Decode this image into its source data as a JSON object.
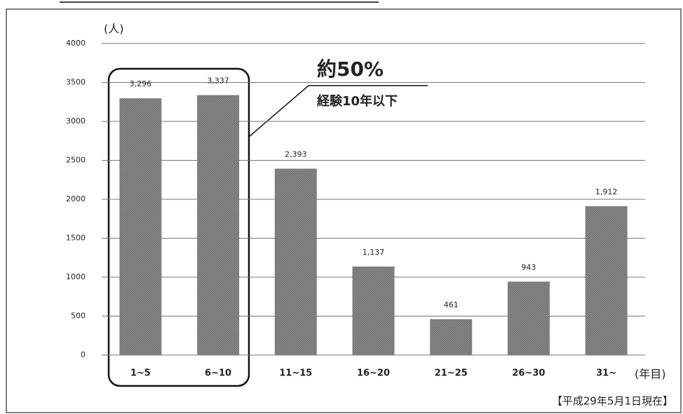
{
  "chart_data": {
    "type": "bar",
    "y_label": "(人)",
    "x_unit": "(年目)",
    "annotation_title": "約50%",
    "annotation_text": "経験10年以下",
    "footnote": "【平成29年5月1日現在】",
    "categories": [
      "1~5",
      "6~10",
      "11~15",
      "16~20",
      "21~25",
      "26~30",
      "31~"
    ],
    "values": [
      3296,
      3337,
      2393,
      1137,
      461,
      943,
      1912
    ],
    "value_labels": [
      "3,296",
      "3,337",
      "2,393",
      "1,137",
      "461",
      "943",
      "1,912"
    ],
    "color": "#8a8a8a",
    "ylim": [
      0,
      4000
    ],
    "yticks": [
      0,
      500,
      1000,
      1500,
      2000,
      2500,
      3000,
      3500,
      4000
    ],
    "grid": true
  }
}
